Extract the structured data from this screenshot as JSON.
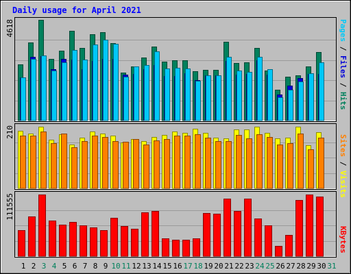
{
  "title": "Daily usage for April 2021",
  "colors": {
    "background": "#C0C0C0",
    "panel": "#BEBEBE",
    "title": "#0000FF",
    "hits": "#00805C",
    "files": "#0000D8",
    "pages": "#00C8F8",
    "visits": "#FFFF00",
    "sites": "#FF8000",
    "kbytes": "#FF0000",
    "weekend_day": "#00805C",
    "weekday": "#000000"
  },
  "chart_data": [
    {
      "type": "bar",
      "name": "hits-files-pages",
      "max_label": "4618",
      "ylim": [
        0,
        4618
      ],
      "axis_label": {
        "pages": "Pages",
        "files": "Files",
        "hits": "Hits",
        "sep": " / "
      },
      "categories": [
        "1",
        "2",
        "3",
        "4",
        "5",
        "6",
        "7",
        "8",
        "9",
        "10",
        "11",
        "12",
        "13",
        "14",
        "15",
        "16",
        "17",
        "18",
        "19",
        "20",
        "21",
        "22",
        "23",
        "24",
        "25",
        "26",
        "27",
        "28",
        "29",
        "30",
        "31"
      ],
      "series": [
        {
          "name": "Hits",
          "values": [
            2567,
            3581,
            4618,
            2840,
            3190,
            4128,
            3325,
            3962,
            4054,
            3561,
            2194,
            2491,
            2889,
            3383,
            2714,
            2762,
            2749,
            2257,
            2337,
            2337,
            3627,
            2632,
            2683,
            3333,
            2284,
            1404,
            2004,
            2074,
            2485,
            3129,
            0
          ]
        },
        {
          "name": "Files",
          "values": [
            1986,
            2919,
            2946,
            2360,
            2831,
            2802,
            2360,
            2739,
            2819,
            2819,
            2117,
            2146,
            2360,
            2542,
            2035,
            2035,
            2175,
            1845,
            2065,
            2065,
            2739,
            2117,
            2146,
            2768,
            2117,
            1183,
            1604,
            1933,
            2146,
            2146,
            0
          ]
        },
        {
          "name": "Pages",
          "values": [
            1986,
            2842,
            2993,
            2281,
            2677,
            3240,
            2787,
            3497,
            3700,
            3505,
            2004,
            2487,
            2538,
            3186,
            2398,
            2425,
            2372,
            1833,
            2065,
            2065,
            2919,
            2280,
            2221,
            2919,
            2347,
            1070,
            1421,
            1804,
            2175,
            2664,
            0
          ]
        }
      ]
    },
    {
      "type": "bar",
      "name": "visits-sites",
      "max_label": "210",
      "ylim": [
        0,
        210
      ],
      "axis_label": {
        "sites": "Sites",
        "visits": "Visits",
        "sep": " / "
      },
      "categories": [
        "1",
        "2",
        "3",
        "4",
        "5",
        "6",
        "7",
        "8",
        "9",
        "10",
        "11",
        "12",
        "13",
        "14",
        "15",
        "16",
        "17",
        "18",
        "19",
        "20",
        "21",
        "22",
        "23",
        "24",
        "25",
        "26",
        "27",
        "28",
        "29",
        "30",
        "31"
      ],
      "series": [
        {
          "name": "Visits",
          "values": [
            195,
            187,
            210,
            165,
            184,
            150,
            173,
            194,
            187,
            179,
            157,
            169,
            160,
            175,
            181,
            193,
            188,
            202,
            190,
            173,
            170,
            200,
            201,
            210,
            189,
            171,
            172,
            210,
            146,
            191,
            0
          ]
        },
        {
          "name": "Sites",
          "values": [
            180,
            180,
            194,
            154,
            186,
            141,
            162,
            179,
            175,
            160,
            159,
            169,
            149,
            163,
            167,
            179,
            179,
            185,
            173,
            162,
            161,
            181,
            170,
            184,
            175,
            150,
            154,
            186,
            133,
            173,
            0
          ]
        }
      ]
    },
    {
      "type": "bar",
      "name": "kbytes",
      "max_label": "111555",
      "ylim": [
        0,
        111555
      ],
      "axis_label": {
        "kbytes": "KBytes"
      },
      "categories": [
        "1",
        "2",
        "3",
        "4",
        "5",
        "6",
        "7",
        "8",
        "9",
        "10",
        "11",
        "12",
        "13",
        "14",
        "15",
        "16",
        "17",
        "18",
        "19",
        "20",
        "21",
        "22",
        "23",
        "24",
        "25",
        "26",
        "27",
        "28",
        "29",
        "30",
        "31"
      ],
      "series": [
        {
          "name": "KBytes",
          "values": [
            47040,
            72049,
            111555,
            64452,
            57001,
            62437,
            55720,
            52003,
            47040,
            69611,
            54445,
            49520,
            79475,
            82061,
            31990,
            29497,
            29497,
            32000,
            78195,
            76857,
            104010,
            81938,
            104010,
            68333,
            55720,
            18220,
            38220,
            102040,
            111555,
            107270,
            0
          ]
        }
      ]
    }
  ],
  "days": [
    {
      "label": "1",
      "weekend": false
    },
    {
      "label": "2",
      "weekend": false
    },
    {
      "label": "3",
      "weekend": true
    },
    {
      "label": "4",
      "weekend": true
    },
    {
      "label": "5",
      "weekend": false
    },
    {
      "label": "6",
      "weekend": false
    },
    {
      "label": "7",
      "weekend": false
    },
    {
      "label": "8",
      "weekend": false
    },
    {
      "label": "9",
      "weekend": false
    },
    {
      "label": "10",
      "weekend": true
    },
    {
      "label": "11",
      "weekend": true
    },
    {
      "label": "12",
      "weekend": false
    },
    {
      "label": "13",
      "weekend": false
    },
    {
      "label": "14",
      "weekend": false
    },
    {
      "label": "15",
      "weekend": false
    },
    {
      "label": "16",
      "weekend": false
    },
    {
      "label": "17",
      "weekend": true
    },
    {
      "label": "18",
      "weekend": true
    },
    {
      "label": "19",
      "weekend": false
    },
    {
      "label": "20",
      "weekend": false
    },
    {
      "label": "21",
      "weekend": false
    },
    {
      "label": "22",
      "weekend": false
    },
    {
      "label": "23",
      "weekend": false
    },
    {
      "label": "24",
      "weekend": true
    },
    {
      "label": "25",
      "weekend": true
    },
    {
      "label": "26",
      "weekend": false
    },
    {
      "label": "27",
      "weekend": false
    },
    {
      "label": "28",
      "weekend": false
    },
    {
      "label": "29",
      "weekend": false
    },
    {
      "label": "30",
      "weekend": false
    },
    {
      "label": "31",
      "weekend": true
    }
  ]
}
